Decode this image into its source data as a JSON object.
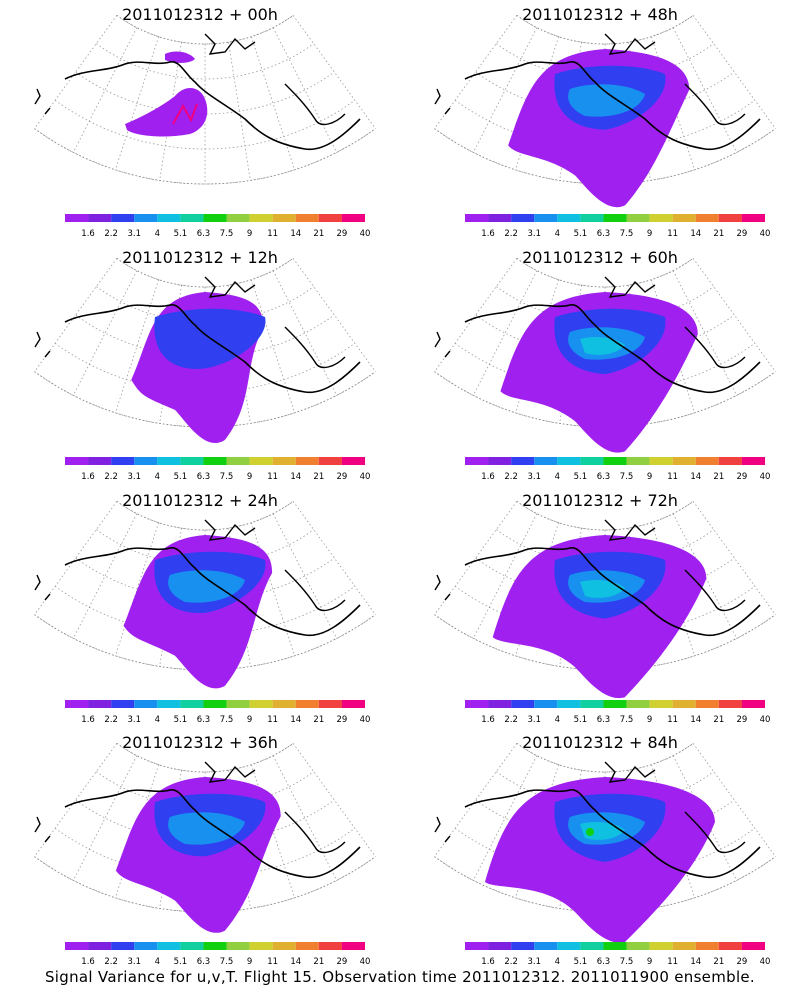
{
  "colorbar": {
    "labels": [
      "1.6",
      "2.2",
      "3.1",
      "4",
      "5.1",
      "6.3",
      "7.5",
      "9",
      "11",
      "14",
      "21",
      "29",
      "40"
    ],
    "colors": [
      "#a020f0",
      "#8020e0",
      "#3040f0",
      "#1890f0",
      "#10c0e0",
      "#10d0a0",
      "#10d010",
      "#90d040",
      "#d0d030",
      "#e0b030",
      "#f08030",
      "#f04040",
      "#f00080"
    ]
  },
  "panels": [
    {
      "title": "2011012312 + 00h",
      "hours": 0
    },
    {
      "title": "2011012312 + 48h",
      "hours": 48
    },
    {
      "title": "2011012312 + 12h",
      "hours": 12
    },
    {
      "title": "2011012312 + 60h",
      "hours": 60
    },
    {
      "title": "2011012312 + 24h",
      "hours": 24
    },
    {
      "title": "2011012312 + 72h",
      "hours": 72
    },
    {
      "title": "2011012312 + 36h",
      "hours": 36
    },
    {
      "title": "2011012312 + 84h",
      "hours": 84
    }
  ],
  "footer": "Signal Variance for u,v,T. Flight 15. Observation time 2011012312. 2011011900 ensemble."
}
